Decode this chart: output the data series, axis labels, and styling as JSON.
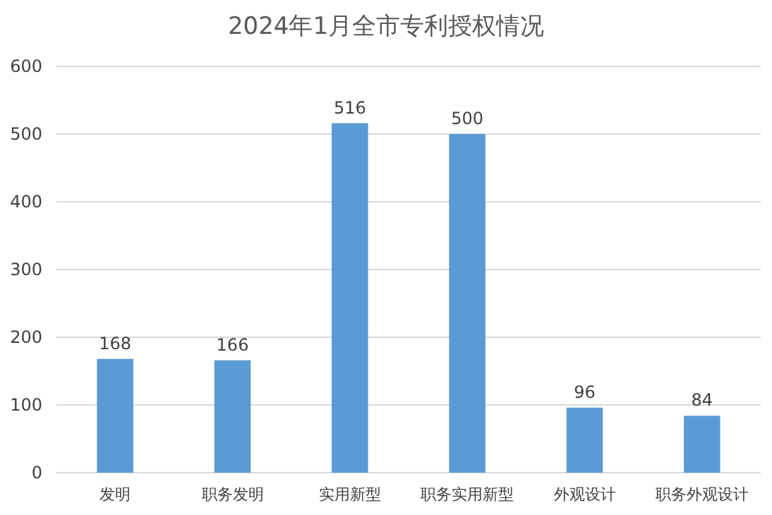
{
  "chart_data": {
    "type": "bar",
    "title": "2024年1月全市专利授权情况",
    "categories": [
      "发明",
      "职务发明",
      "实用新型",
      "职务实用新型",
      "外观设计",
      "职务外观设计"
    ],
    "values": [
      168,
      166,
      516,
      500,
      96,
      84
    ],
    "color": "#5b9bd5",
    "ylim": [
      0,
      600
    ],
    "yticks": [
      0,
      100,
      200,
      300,
      400,
      500,
      600
    ],
    "grid": "y",
    "data_labels": true
  }
}
